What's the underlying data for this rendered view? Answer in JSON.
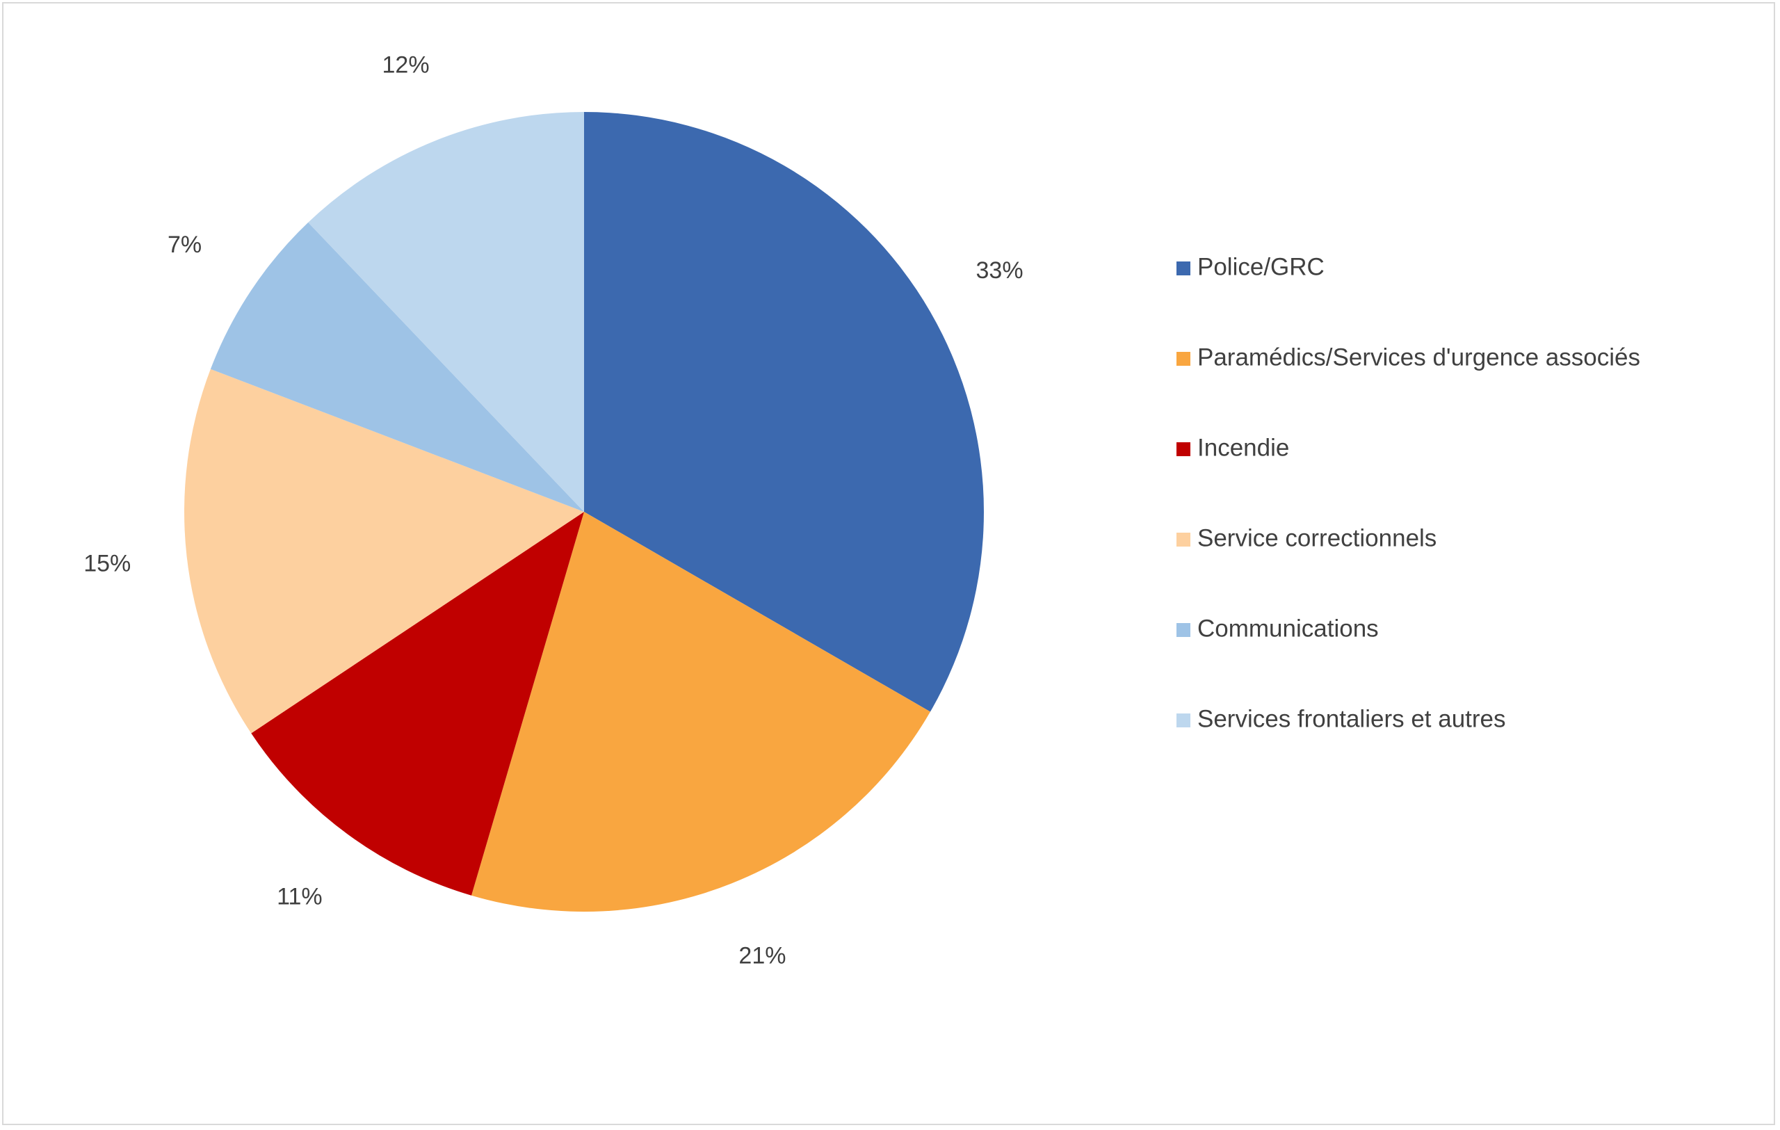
{
  "chart_data": {
    "type": "pie",
    "title": "",
    "legend_position": "right",
    "start_angle_deg": 0,
    "direction": "clockwise",
    "slices": [
      {
        "name": "Police/GRC",
        "value": 33,
        "label": "33%",
        "color": "#3C69AF"
      },
      {
        "name": "Paramédics/Services d'urgence associés",
        "value": 21,
        "label": "21%",
        "color": "#F9A640"
      },
      {
        "name": "Incendie",
        "value": 11,
        "label": "11%",
        "color": "#C00000"
      },
      {
        "name": "Service correctionnels",
        "value": 15,
        "label": "15%",
        "color": "#FDD09F"
      },
      {
        "name": "Communications",
        "value": 7,
        "label": "7%",
        "color": "#9EC3E6"
      },
      {
        "name": "Services frontaliers et autres",
        "value": 12,
        "label": "12%",
        "color": "#BDD7EE"
      }
    ]
  }
}
